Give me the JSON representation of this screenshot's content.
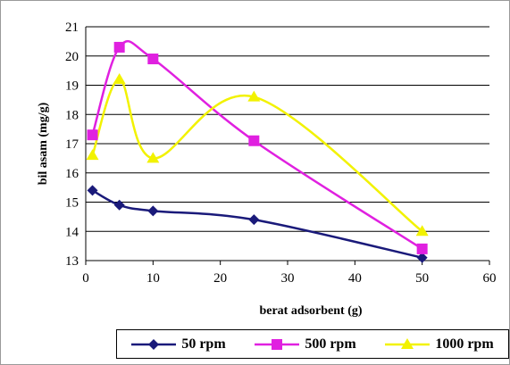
{
  "chart_data": {
    "type": "line",
    "title": "",
    "xlabel": "berat adsorbent (g)",
    "ylabel": "bil asam (mg/g)",
    "xlim": [
      0,
      60
    ],
    "ylim": [
      13,
      21
    ],
    "x_ticks": [
      "0",
      "10",
      "20",
      "30",
      "40",
      "50",
      "60"
    ],
    "y_ticks": [
      "13",
      "14",
      "15",
      "16",
      "17",
      "18",
      "19",
      "20",
      "21"
    ],
    "grid": "horizontal",
    "legend_position": "bottom",
    "smoothed": true,
    "series": [
      {
        "name": "50 rpm",
        "color": "#1a1a7a",
        "marker": "diamond",
        "x": [
          1,
          5,
          10,
          25,
          50
        ],
        "y": [
          15.4,
          14.9,
          14.7,
          14.4,
          13.1
        ]
      },
      {
        "name": "500 rpm",
        "color": "#e020e0",
        "marker": "square",
        "x": [
          1,
          5,
          10,
          25,
          50
        ],
        "y": [
          17.3,
          20.3,
          19.9,
          17.1,
          13.4
        ]
      },
      {
        "name": "1000 rpm",
        "color": "#f2f200",
        "marker": "triangle",
        "x": [
          1,
          5,
          10,
          25,
          50
        ],
        "y": [
          16.6,
          19.2,
          16.5,
          18.6,
          14.0
        ]
      }
    ]
  }
}
